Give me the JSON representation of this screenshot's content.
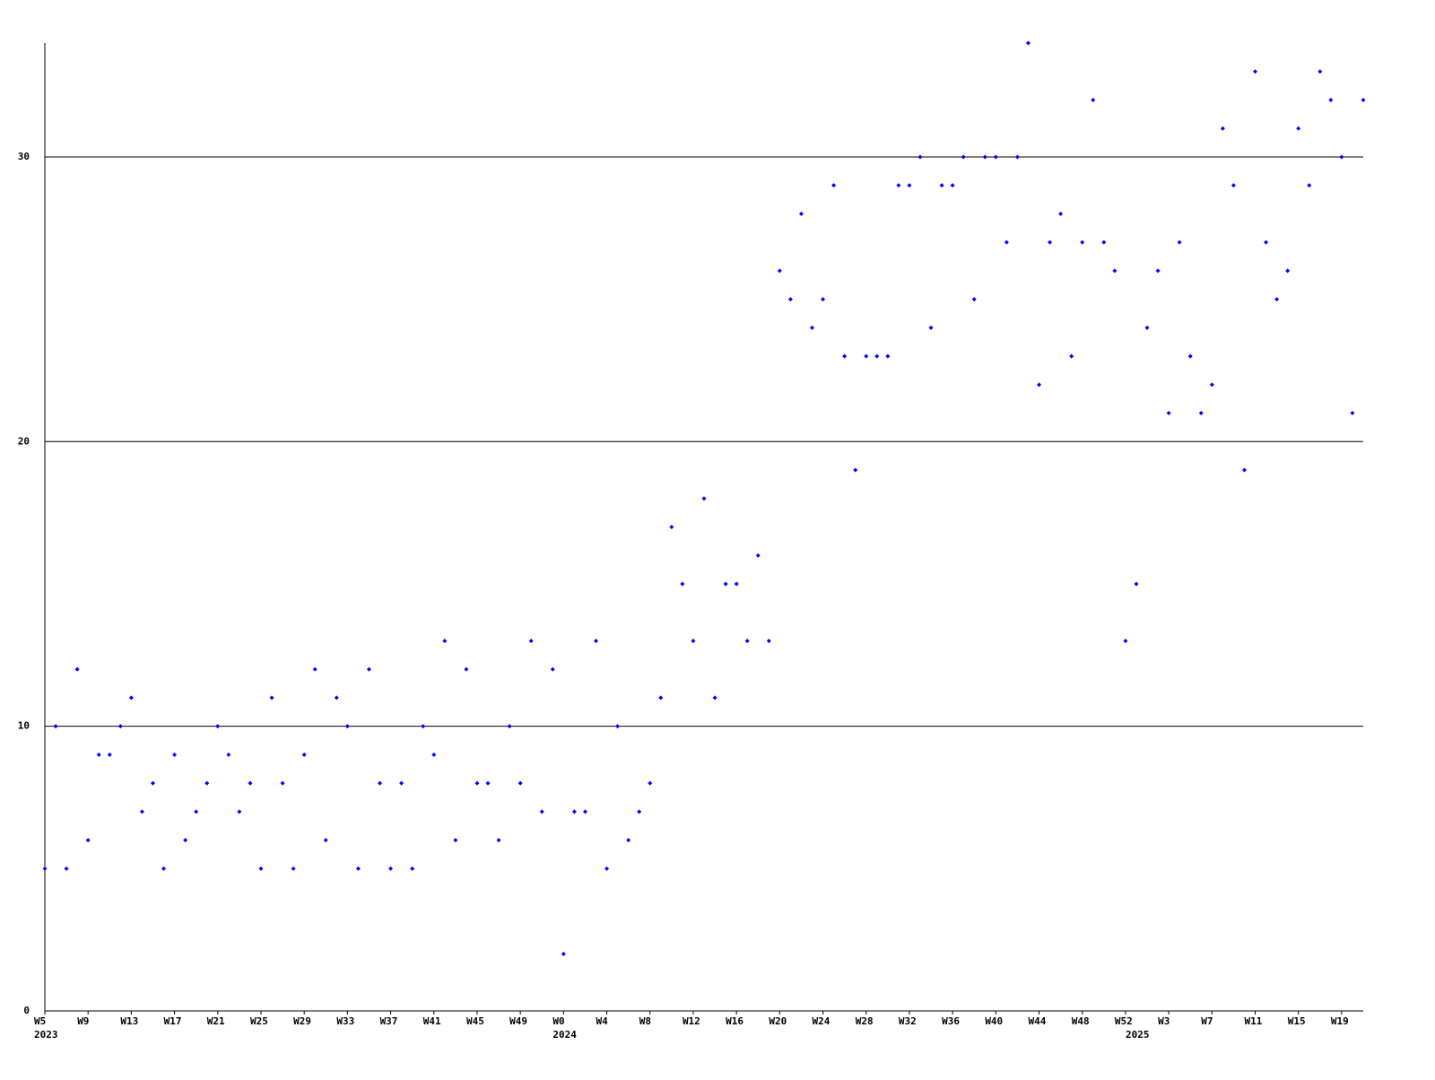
{
  "chart_data": {
    "type": "line",
    "categories": [
      "W5",
      null,
      null,
      null,
      "W9",
      null,
      null,
      null,
      "W13",
      null,
      null,
      null,
      "W17",
      null,
      null,
      null,
      "W21",
      null,
      null,
      null,
      "W25",
      null,
      null,
      null,
      "W29",
      null,
      null,
      null,
      "W33",
      null,
      null,
      null,
      "W37",
      null,
      null,
      null,
      "W41",
      null,
      null,
      null,
      "W45",
      null,
      null,
      null,
      "W49",
      null,
      null,
      null,
      "W0",
      null,
      null,
      null,
      "W4",
      null,
      null,
      null,
      "W8",
      null,
      null,
      null,
      "W12",
      null,
      null,
      null,
      "W16",
      null,
      null,
      null,
      "W20",
      null,
      null,
      null,
      "W24",
      null,
      null,
      null,
      "W28",
      null,
      null,
      null,
      "W32",
      null,
      null,
      null,
      "W36",
      null,
      null,
      null,
      "W40",
      null,
      null,
      null,
      "W44",
      null,
      null,
      null,
      "W48",
      null,
      null,
      null,
      "W52",
      null,
      null,
      null,
      "W3",
      null,
      null,
      null,
      "W7",
      null,
      null,
      null,
      "W11",
      null,
      null,
      null,
      "W15",
      null,
      null,
      null,
      "W19",
      null,
      null
    ],
    "category_years": [
      "2023",
      null,
      null,
      null,
      null,
      null,
      null,
      null,
      null,
      null,
      null,
      null,
      null,
      null,
      null,
      null,
      null,
      null,
      null,
      null,
      null,
      null,
      null,
      null,
      null,
      null,
      null,
      null,
      null,
      null,
      null,
      null,
      null,
      null,
      null,
      null,
      null,
      null,
      null,
      null,
      null,
      null,
      null,
      null,
      null,
      null,
      null,
      null,
      "2024",
      null,
      null,
      null,
      null,
      null,
      null,
      null,
      null,
      null,
      null,
      null,
      null,
      null,
      null,
      null,
      null,
      null,
      null,
      null,
      null,
      null,
      null,
      null,
      null,
      null,
      null,
      null,
      null,
      null,
      null,
      null,
      null,
      null,
      null,
      null,
      null,
      null,
      null,
      null,
      null,
      null,
      null,
      null,
      null,
      null,
      null,
      null,
      null,
      null,
      null,
      null,
      null,
      "2025",
      null,
      null,
      null,
      null,
      null,
      null,
      null,
      null,
      null,
      null,
      null,
      null,
      null,
      null,
      null,
      null,
      null,
      null,
      null,
      null,
      null
    ],
    "series": [
      {
        "color": "#0000ff",
        "values": [
          5,
          10,
          5,
          12,
          6,
          9,
          9,
          10,
          11,
          7,
          8,
          5,
          9,
          6,
          7,
          8,
          10,
          9,
          7,
          8,
          5,
          11,
          8,
          5,
          9,
          12,
          6,
          11,
          10,
          5,
          12,
          8,
          5,
          8,
          5,
          10,
          9,
          13,
          6,
          12,
          8,
          8,
          6,
          10,
          8,
          13,
          7,
          12,
          2,
          7,
          7,
          13,
          5,
          10,
          6,
          7,
          8,
          11,
          17,
          15,
          13,
          18,
          11,
          15,
          15,
          13,
          16,
          13,
          26,
          25,
          28,
          24,
          25,
          29,
          23,
          19,
          23,
          23,
          23,
          29,
          29,
          30,
          24,
          29,
          29,
          30,
          25,
          30,
          30,
          27,
          30,
          34,
          22,
          27,
          28,
          23,
          27,
          32,
          27,
          26,
          13,
          15,
          24,
          26,
          21,
          27,
          23,
          21,
          22,
          31,
          29,
          19,
          33,
          27,
          25,
          26,
          31,
          29,
          33,
          32,
          30,
          21,
          32
        ]
      }
    ],
    "ylim": [
      0,
      34
    ],
    "yticks": [
      0,
      10,
      20,
      30
    ],
    "grid": true
  }
}
